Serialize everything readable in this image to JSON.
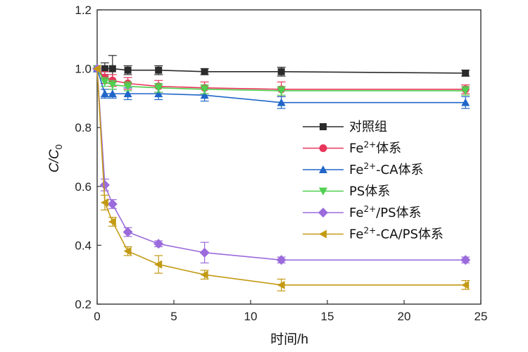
{
  "chart_data": {
    "type": "line",
    "xlabel": "时间/h",
    "ylabel": {
      "main": "C/C",
      "sub": "0"
    },
    "xlim": [
      0,
      25
    ],
    "ylim": [
      0.2,
      1.2
    ],
    "xticks": [
      "0",
      "5",
      "10",
      "15",
      "20",
      "25"
    ],
    "yticks": [
      "0.2",
      "0.4",
      "0.6",
      "0.8",
      "1.0",
      "1.2"
    ],
    "grid": false,
    "legend_position": "center-right",
    "series": [
      {
        "name": "对照组",
        "legend_parts": [
          "对照组",
          "",
          ""
        ],
        "color": "#2b2b2b",
        "marker": "square",
        "x": [
          0,
          0.5,
          1,
          2,
          4,
          7,
          12,
          24
        ],
        "y": [
          1.0,
          1.0,
          1.0,
          0.995,
          0.995,
          0.99,
          0.99,
          0.985
        ],
        "err": [
          0.0,
          0.02,
          0.045,
          0.015,
          0.015,
          0.01,
          0.015,
          0.01
        ]
      },
      {
        "name": "Fe2+体系",
        "legend_parts": [
          "Fe",
          "2+",
          "体系"
        ],
        "color": "#e8365a",
        "marker": "circle",
        "x": [
          0,
          0.5,
          1,
          2,
          4,
          7,
          12,
          24
        ],
        "y": [
          1.0,
          0.97,
          0.96,
          0.95,
          0.94,
          0.935,
          0.93,
          0.93
        ],
        "err": [
          0.0,
          0.02,
          0.02,
          0.02,
          0.02,
          0.02,
          0.025,
          0.015
        ]
      },
      {
        "name": "Fe2+-CA体系",
        "legend_parts": [
          "Fe",
          "2+",
          "-CA体系"
        ],
        "color": "#2066c8",
        "marker": "triangle-up",
        "x": [
          0,
          0.5,
          1,
          2,
          4,
          7,
          12,
          24
        ],
        "y": [
          1.0,
          0.915,
          0.915,
          0.915,
          0.915,
          0.91,
          0.885,
          0.885
        ],
        "err": [
          0.0,
          0.015,
          0.015,
          0.02,
          0.02,
          0.02,
          0.02,
          0.02
        ]
      },
      {
        "name": "PS体系",
        "legend_parts": [
          "PS体系",
          "",
          ""
        ],
        "color": "#4fcf4f",
        "marker": "triangle-down",
        "x": [
          0,
          0.5,
          1,
          2,
          4,
          7,
          12,
          24
        ],
        "y": [
          1.0,
          0.955,
          0.945,
          0.94,
          0.935,
          0.93,
          0.925,
          0.925
        ],
        "err": [
          0.0,
          0.015,
          0.015,
          0.015,
          0.015,
          0.015,
          0.015,
          0.015
        ]
      },
      {
        "name": "Fe2+/PS体系",
        "legend_parts": [
          "Fe",
          "2+",
          "/PS体系"
        ],
        "color": "#9b6bdc",
        "marker": "diamond",
        "x": [
          0,
          0.5,
          1,
          2,
          4,
          7,
          12,
          24
        ],
        "y": [
          1.0,
          0.605,
          0.54,
          0.445,
          0.405,
          0.375,
          0.35,
          0.35
        ],
        "err": [
          0.0,
          0.02,
          0.015,
          0.015,
          0.01,
          0.035,
          0.01,
          0.01
        ]
      },
      {
        "name": "Fe2+-CA/PS体系",
        "legend_parts": [
          "Fe",
          "2+",
          "-CA/PS体系"
        ],
        "color": "#c39a14",
        "marker": "triangle-left",
        "x": [
          0,
          0.5,
          1,
          2,
          4,
          7,
          12,
          24
        ],
        "y": [
          1.0,
          0.545,
          0.48,
          0.38,
          0.335,
          0.3,
          0.265,
          0.265
        ],
        "err": [
          0.0,
          0.025,
          0.015,
          0.015,
          0.03,
          0.015,
          0.02,
          0.015
        ]
      }
    ]
  }
}
